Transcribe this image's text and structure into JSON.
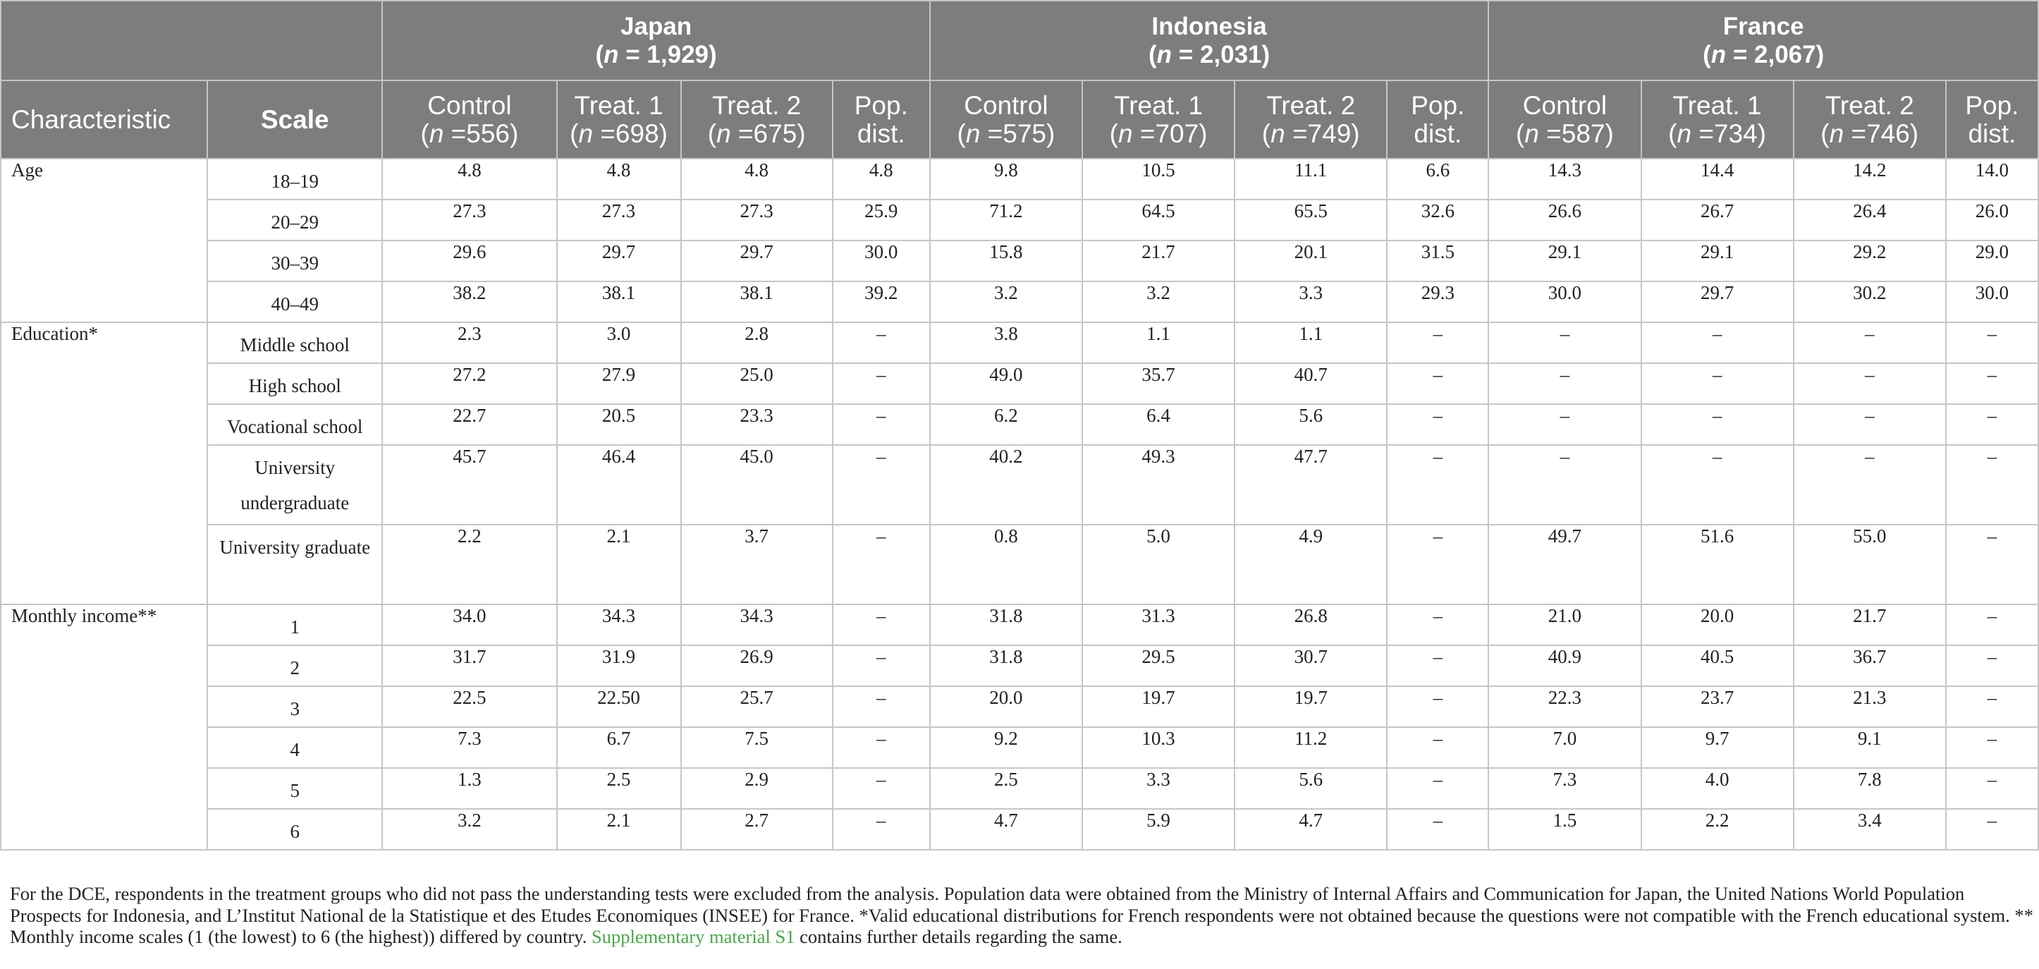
{
  "header": {
    "countries": [
      {
        "name": "Japan",
        "n_prefix": "(",
        "n_var": "n",
        "n_value": " = 1,929)"
      },
      {
        "name": "Indonesia",
        "n_prefix": "(",
        "n_var": "n",
        "n_value": " = 2,031)"
      },
      {
        "name": "France",
        "n_prefix": "(",
        "n_var": "n",
        "n_value": " = 2,067)"
      }
    ],
    "characteristic_label": "Characteristic",
    "scale_label": "Scale",
    "groups": [
      {
        "line1": "Control",
        "n_prefix": "(",
        "n_var": "n",
        "n_value": " =556)"
      },
      {
        "line1": "Treat. 1",
        "n_prefix": "(",
        "n_var": "n",
        "n_value": " =698)"
      },
      {
        "line1": "Treat. 2",
        "n_prefix": "(",
        "n_var": "n",
        "n_value": " =675)"
      },
      {
        "line1": "Pop.",
        "line2": "dist."
      },
      {
        "line1": "Control",
        "n_prefix": "(",
        "n_var": "n",
        "n_value": " =575)"
      },
      {
        "line1": "Treat. 1",
        "n_prefix": "(",
        "n_var": "n",
        "n_value": " =707)"
      },
      {
        "line1": "Treat. 2",
        "n_prefix": "(",
        "n_var": "n",
        "n_value": " =749)"
      },
      {
        "line1": "Pop.",
        "line2": "dist."
      },
      {
        "line1": "Control",
        "n_prefix": "(",
        "n_var": "n",
        "n_value": " =587)"
      },
      {
        "line1": "Treat. 1",
        "n_prefix": "(",
        "n_var": "n",
        "n_value": " =734)"
      },
      {
        "line1": "Treat. 2",
        "n_prefix": "(",
        "n_var": "n",
        "n_value": " =746)"
      },
      {
        "line1": "Pop.",
        "line2": "dist."
      }
    ]
  },
  "sections": [
    {
      "characteristic": "Age",
      "rows": [
        {
          "scale": "18–19",
          "values": [
            "4.8",
            "4.8",
            "4.8",
            "4.8",
            "9.8",
            "10.5",
            "11.1",
            "6.6",
            "14.3",
            "14.4",
            "14.2",
            "14.0"
          ]
        },
        {
          "scale": "20–29",
          "values": [
            "27.3",
            "27.3",
            "27.3",
            "25.9",
            "71.2",
            "64.5",
            "65.5",
            "32.6",
            "26.6",
            "26.7",
            "26.4",
            "26.0"
          ]
        },
        {
          "scale": "30–39",
          "values": [
            "29.6",
            "29.7",
            "29.7",
            "30.0",
            "15.8",
            "21.7",
            "20.1",
            "31.5",
            "29.1",
            "29.1",
            "29.2",
            "29.0"
          ]
        },
        {
          "scale": "40–49",
          "values": [
            "38.2",
            "38.1",
            "38.1",
            "39.2",
            "3.2",
            "3.2",
            "3.3",
            "29.3",
            "30.0",
            "29.7",
            "30.2",
            "30.0"
          ]
        }
      ]
    },
    {
      "characteristic": "Education*",
      "rows": [
        {
          "scale": "Middle school",
          "values": [
            "2.3",
            "3.0",
            "2.8",
            "–",
            "3.8",
            "1.1",
            "1.1",
            "–",
            "–",
            "–",
            "–",
            "–"
          ]
        },
        {
          "scale": "High school",
          "values": [
            "27.2",
            "27.9",
            "25.0",
            "–",
            "49.0",
            "35.7",
            "40.7",
            "–",
            "–",
            "–",
            "–",
            "–"
          ]
        },
        {
          "scale": "Vocational school",
          "values": [
            "22.7",
            "20.5",
            "23.3",
            "–",
            "6.2",
            "6.4",
            "5.6",
            "–",
            "–",
            "–",
            "–",
            "–"
          ]
        },
        {
          "scale": "University undergraduate",
          "tall": true,
          "values": [
            "45.7",
            "46.4",
            "45.0",
            "–",
            "40.2",
            "49.3",
            "47.7",
            "–",
            "–",
            "–",
            "–",
            "–"
          ]
        },
        {
          "scale": "University graduate",
          "tall": true,
          "values": [
            "2.2",
            "2.1",
            "3.7",
            "–",
            "0.8",
            "5.0",
            "4.9",
            "–",
            "49.7",
            "51.6",
            "55.0",
            "–"
          ]
        }
      ]
    },
    {
      "characteristic": "Monthly income**",
      "rows": [
        {
          "scale": "1",
          "values": [
            "34.0",
            "34.3",
            "34.3",
            "–",
            "31.8",
            "31.3",
            "26.8",
            "–",
            "21.0",
            "20.0",
            "21.7",
            "–"
          ]
        },
        {
          "scale": "2",
          "values": [
            "31.7",
            "31.9",
            "26.9",
            "–",
            "31.8",
            "29.5",
            "30.7",
            "–",
            "40.9",
            "40.5",
            "36.7",
            "–"
          ]
        },
        {
          "scale": "3",
          "values": [
            "22.5",
            "22.50",
            "25.7",
            "–",
            "20.0",
            "19.7",
            "19.7",
            "–",
            "22.3",
            "23.7",
            "21.3",
            "–"
          ]
        },
        {
          "scale": "4",
          "values": [
            "7.3",
            "6.7",
            "7.5",
            "–",
            "9.2",
            "10.3",
            "11.2",
            "–",
            "7.0",
            "9.7",
            "9.1",
            "–"
          ]
        },
        {
          "scale": "5",
          "values": [
            "1.3",
            "2.5",
            "2.9",
            "–",
            "2.5",
            "3.3",
            "5.6",
            "–",
            "7.3",
            "4.0",
            "7.8",
            "–"
          ]
        },
        {
          "scale": "6",
          "values": [
            "3.2",
            "2.1",
            "2.7",
            "–",
            "4.7",
            "5.9",
            "4.7",
            "–",
            "1.5",
            "2.2",
            "3.4",
            "–"
          ]
        }
      ]
    }
  ],
  "footnote": {
    "text_before_link": "For the DCE, respondents in the treatment groups who did not pass the understanding tests were excluded from the analysis. Population data were obtained from the Ministry of Internal Affairs and Communication for Japan, the United Nations World Population Prospects for Indonesia, and L’Institut National de la Statistique et des Etudes Economiques (INSEE) for France. *Valid educational distributions for French respondents were not obtained because the questions were not compatible with the French educational system. ** Monthly income scales (1 (the lowest) to 6 (the highest)) differed by country. ",
    "link_text": "Supplementary material S1",
    "text_after_link": " contains further details regarding the same."
  },
  "colors": {
    "header_bg": "#7d7d7d",
    "header_text": "#ffffff",
    "grid": "#c6c6c6",
    "body_text": "#222222",
    "link": "#4aa54a"
  }
}
